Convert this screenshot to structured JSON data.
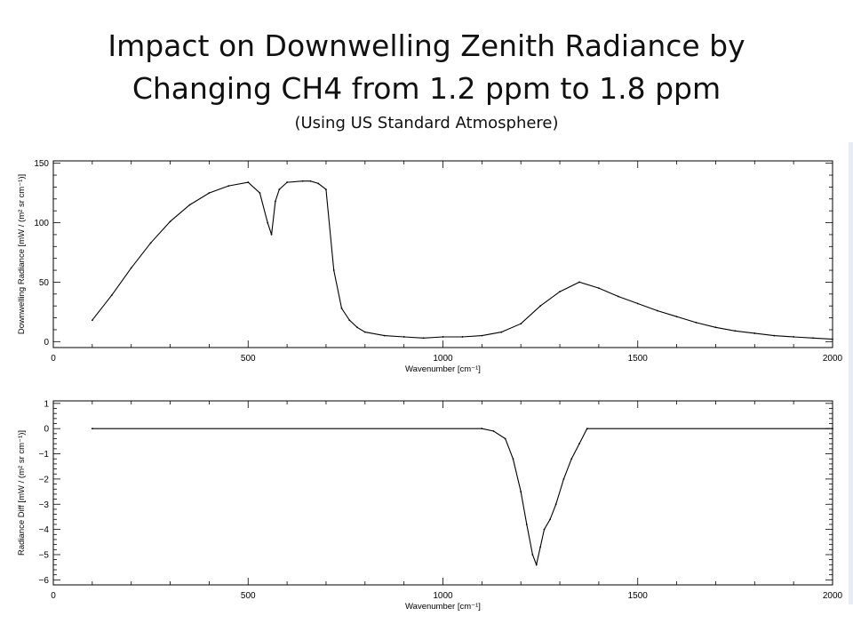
{
  "title_line1": "Impact on Downwelling Zenith Radiance by",
  "title_line2": "Changing CH4 from 1.2 ppm to 1.8 ppm",
  "subtitle": "(Using US Standard Atmosphere)",
  "chart_data": [
    {
      "type": "line",
      "xlabel": "Wavenumber [cm⁻¹]",
      "ylabel": "Downwelling Radiance [mW / (m² sr cm⁻¹)]",
      "xlim": [
        0,
        2000
      ],
      "ylim": [
        -5,
        152
      ],
      "xticks": [
        0,
        500,
        1000,
        1500,
        2000
      ],
      "yticks": [
        0,
        50,
        100,
        150
      ],
      "grid": false,
      "color": "#000000",
      "series": [
        {
          "x": [
            100,
            150,
            200,
            250,
            300,
            350,
            400,
            450,
            500,
            530,
            550,
            560,
            570,
            580,
            600,
            640,
            660,
            680,
            700,
            720,
            740,
            760,
            780,
            800,
            850,
            900,
            950,
            1000,
            1050,
            1100,
            1150,
            1200,
            1250,
            1300,
            1350,
            1400,
            1450,
            1500,
            1550,
            1600,
            1650,
            1700,
            1750,
            1800,
            1850,
            1900,
            1950,
            2000
          ],
          "y": [
            18,
            39,
            62,
            83,
            101,
            115,
            125,
            131,
            134,
            125,
            100,
            90,
            118,
            128,
            134,
            135,
            135,
            133,
            128,
            60,
            28,
            18,
            12,
            8,
            5,
            4,
            3,
            4,
            4,
            5,
            8,
            15,
            30,
            42,
            50,
            45,
            38,
            32,
            26,
            21,
            16,
            12,
            9,
            7,
            5,
            4,
            3,
            2
          ]
        }
      ]
    },
    {
      "type": "line",
      "xlabel": "Wavenumber [cm⁻¹]",
      "ylabel": "Radiance Diff [mW / (m² sr cm⁻¹)]",
      "xlim": [
        0,
        2000
      ],
      "ylim": [
        -6.2,
        1.1
      ],
      "xticks": [
        0,
        500,
        1000,
        1500,
        2000
      ],
      "yticks": [
        1,
        0,
        -1,
        -2,
        -3,
        -4,
        -5,
        -6
      ],
      "grid": false,
      "color": "#000000",
      "series": [
        {
          "x": [
            100,
            1100,
            1130,
            1160,
            1180,
            1200,
            1215,
            1230,
            1240,
            1250,
            1260,
            1275,
            1290,
            1310,
            1330,
            1350,
            1370,
            2000
          ],
          "y": [
            0,
            0,
            -0.1,
            -0.4,
            -1.2,
            -2.5,
            -3.8,
            -5.0,
            -5.4,
            -4.7,
            -4.0,
            -3.6,
            -3.0,
            -2.0,
            -1.2,
            -0.6,
            0,
            0
          ]
        }
      ]
    }
  ]
}
